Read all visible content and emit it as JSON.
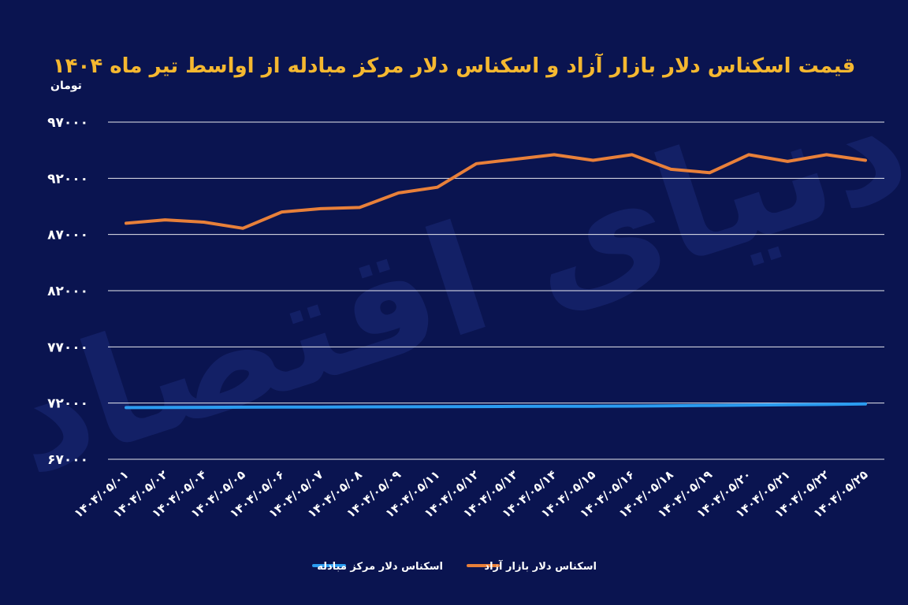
{
  "chart_data": {
    "type": "line",
    "title": "قیمت اسکناس دلار بازار آزاد و اسکناس دلار مرکز مبادله از اواسط تیر ماه ۱۴۰۴",
    "ylabel": "تومان",
    "xlabel": "",
    "ylim": [
      67000,
      97000
    ],
    "yticks": [
      "۹۷۰۰۰",
      "۹۲۰۰۰",
      "۸۷۰۰۰",
      "۸۲۰۰۰",
      "۷۷۰۰۰",
      "۷۲۰۰۰",
      "۶۷۰۰۰"
    ],
    "ytick_values": [
      97000,
      92000,
      87000,
      82000,
      77000,
      72000,
      67000
    ],
    "grid": true,
    "legend_position": "bottom",
    "categories": [
      "۱۴۰۴/۰۵/۰۱",
      "۱۴۰۴/۰۵/۰۲",
      "۱۴۰۴/۰۵/۰۴",
      "۱۴۰۴/۰۵/۰۵",
      "۱۴۰۴/۰۵/۰۶",
      "۱۴۰۴/۰۵/۰۷",
      "۱۴۰۴/۰۵/۰۸",
      "۱۴۰۴/۰۵/۰۹",
      "۱۴۰۴/۰۵/۱۱",
      "۱۴۰۴/۰۵/۱۲",
      "۱۴۰۴/۰۵/۱۳",
      "۱۴۰۴/۰۵/۱۴",
      "۱۴۰۴/۰۵/۱۵",
      "۱۴۰۴/۰۵/۱۶",
      "۱۴۰۴/۰۵/۱۸",
      "۱۴۰۴/۰۵/۱۹",
      "۱۴۰۴/۰۵/۲۰",
      "۱۴۰۴/۰۵/۲۱",
      "۱۴۰۴/۰۵/۲۲",
      "۱۴۰۴/۰۵/۲۵"
    ],
    "series": [
      {
        "name": "اسکناس دلار بازار آزاد",
        "color": "#e8803a",
        "values": [
          88000,
          88300,
          88100,
          87550,
          89000,
          89300,
          89400,
          90700,
          91200,
          93300,
          93700,
          94100,
          93600,
          94100,
          92800,
          92500,
          94100,
          93500,
          94100,
          93600
        ]
      },
      {
        "name": "اسکناس دلار مرکز مبادله",
        "color": "#2b9cf0",
        "values": [
          71600,
          71610,
          71620,
          71630,
          71640,
          71650,
          71660,
          71670,
          71680,
          71690,
          71700,
          71710,
          71720,
          71730,
          71760,
          71790,
          71820,
          71850,
          71880,
          71920
        ]
      }
    ]
  },
  "watermark": "دنیای اقتصاد"
}
